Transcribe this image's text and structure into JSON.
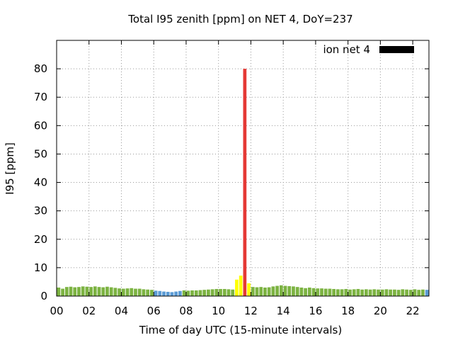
{
  "chart_data": {
    "type": "bar",
    "title": "Total I95 zenith [ppm] on NET 4, DoY=237",
    "xlabel": "Time of day UTC (15-minute intervals)",
    "ylabel": "I95 [ppm]",
    "xlim": [
      0,
      23
    ],
    "ylim": [
      0,
      90
    ],
    "xticks": [
      "00",
      "02",
      "04",
      "06",
      "08",
      "10",
      "12",
      "14",
      "16",
      "18",
      "20",
      "22"
    ],
    "yticks": [
      0,
      10,
      20,
      30,
      40,
      50,
      60,
      70,
      80
    ],
    "grid": true,
    "legend": {
      "label": "ion net 4",
      "color": "#000000",
      "position": "top-right"
    },
    "bar_width_hours": 0.25,
    "colors": {
      "green": "#7cb342",
      "blue": "#5b9bd5",
      "yellow": "#ffff00",
      "red": "#e53935"
    },
    "series": [
      {
        "start_hour": 0,
        "interval_hours": 0.25,
        "values": [
          3.0,
          2.6,
          3.2,
          3.3,
          3.1,
          3.2,
          3.4,
          3.3,
          3.2,
          3.4,
          3.2,
          3.1,
          3.3,
          3.1,
          2.9,
          2.7,
          2.6,
          2.7,
          2.8,
          2.6,
          2.6,
          2.4,
          2.3,
          2.2,
          1.9,
          1.8,
          1.6,
          1.5,
          1.4,
          1.6,
          1.8,
          2.0,
          1.9,
          2.0,
          2.0,
          2.1,
          2.2,
          2.3,
          2.4,
          2.5,
          2.5,
          2.5,
          2.4,
          2.3,
          5.8,
          7.2,
          80.0,
          4.5,
          3.2,
          3.1,
          3.2,
          3.0,
          3.1,
          3.4,
          3.6,
          3.8,
          3.6,
          3.5,
          3.4,
          3.2,
          3.0,
          2.8,
          3.0,
          2.8,
          2.7,
          2.7,
          2.6,
          2.6,
          2.5,
          2.4,
          2.4,
          2.5,
          2.3,
          2.4,
          2.5,
          2.3,
          2.4,
          2.3,
          2.4,
          2.3,
          2.3,
          2.4,
          2.3,
          2.3,
          2.2,
          2.4,
          2.3,
          2.2,
          2.4,
          2.2,
          2.3,
          2.2
        ],
        "colors": [
          "green",
          "green",
          "green",
          "green",
          "green",
          "green",
          "green",
          "green",
          "green",
          "green",
          "green",
          "green",
          "green",
          "green",
          "green",
          "green",
          "green",
          "green",
          "green",
          "green",
          "green",
          "green",
          "green",
          "green",
          "blue",
          "blue",
          "blue",
          "blue",
          "blue",
          "blue",
          "blue",
          "green",
          "green",
          "green",
          "green",
          "green",
          "green",
          "green",
          "green",
          "green",
          "green",
          "green",
          "green",
          "green",
          "yellow",
          "yellow",
          "red",
          "yellow",
          "green",
          "green",
          "green",
          "green",
          "green",
          "green",
          "green",
          "green",
          "green",
          "green",
          "green",
          "green",
          "green",
          "green",
          "green",
          "green",
          "green",
          "green",
          "green",
          "green",
          "green",
          "green",
          "green",
          "green",
          "green",
          "green",
          "green",
          "green",
          "green",
          "green",
          "green",
          "green",
          "green",
          "green",
          "green",
          "green",
          "green",
          "green",
          "green",
          "green",
          "green",
          "green",
          "green",
          "blue"
        ]
      }
    ]
  }
}
